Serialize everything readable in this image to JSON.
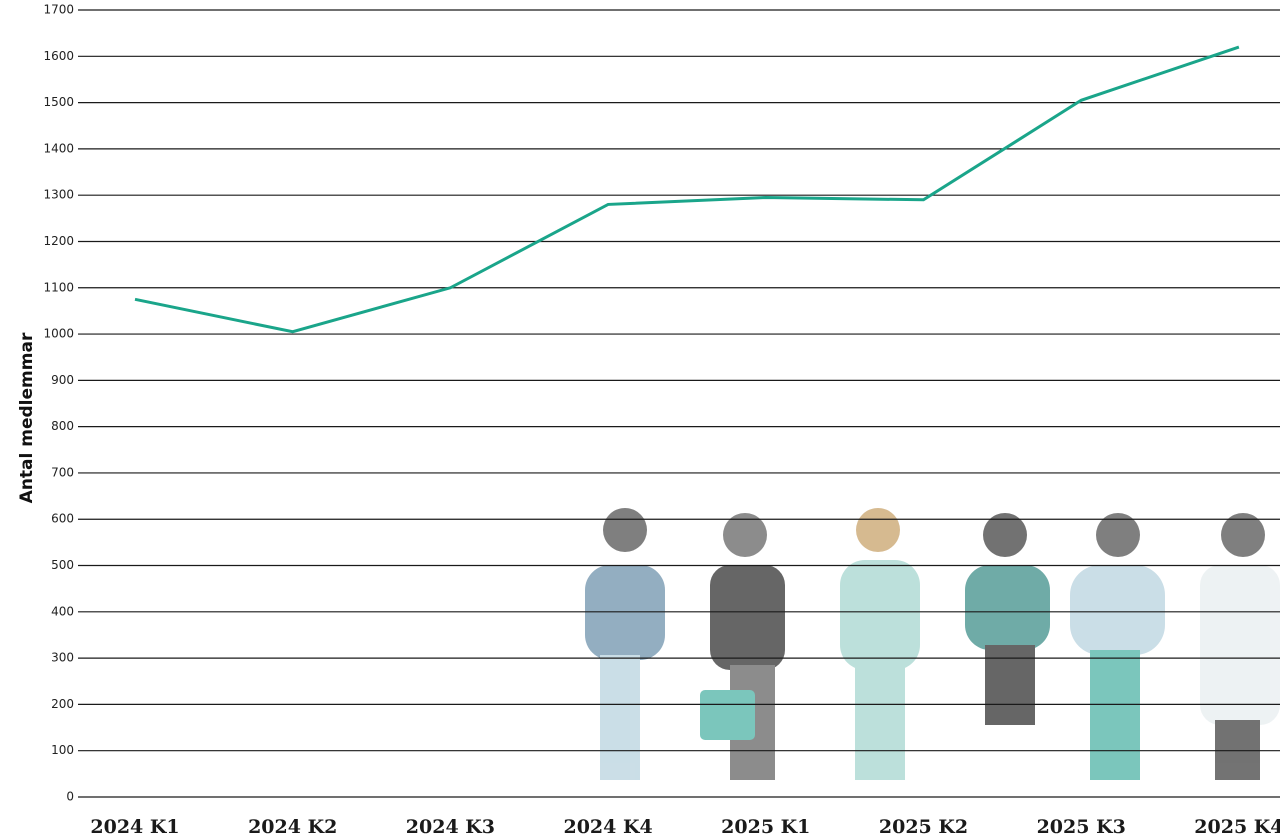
{
  "chart_data": {
    "type": "line",
    "y_label": "Antal medlemmar",
    "categories": [
      "2024 K1",
      "2024 K2",
      "2024 K3",
      "2024 K4",
      "2025 K1",
      "2025 K2",
      "2025 K3",
      "2025 K4"
    ],
    "series": [
      {
        "name": "Antal medlemmar",
        "color": "#1aa58a",
        "values": [
          1075,
          1005,
          1100,
          1280,
          1295,
          1290,
          1505,
          1620
        ]
      }
    ],
    "ylim": [
      0,
      1700
    ],
    "yticks": [
      0,
      100,
      200,
      300,
      400,
      500,
      600,
      700,
      800,
      900,
      1000,
      1100,
      1200,
      1300,
      1400,
      1500,
      1600,
      1700
    ],
    "grid": true
  }
}
